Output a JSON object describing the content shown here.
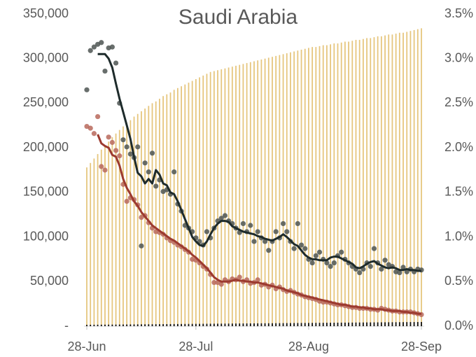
{
  "chart_data": {
    "type": "combo",
    "title": "Saudi Arabia",
    "categories": [
      "28-Jun",
      null,
      null,
      null,
      null,
      null,
      null,
      null,
      null,
      null,
      null,
      null,
      null,
      null,
      null,
      null,
      null,
      null,
      null,
      null,
      null,
      null,
      null,
      null,
      null,
      null,
      null,
      null,
      null,
      null,
      "28-Jul",
      null,
      null,
      null,
      null,
      null,
      null,
      null,
      null,
      null,
      null,
      null,
      null,
      null,
      null,
      null,
      null,
      null,
      null,
      null,
      null,
      null,
      null,
      null,
      null,
      null,
      null,
      null,
      null,
      null,
      null,
      "28-Aug",
      null,
      null,
      null,
      null,
      null,
      null,
      null,
      null,
      null,
      null,
      null,
      null,
      null,
      null,
      null,
      null,
      null,
      null,
      null,
      null,
      null,
      null,
      null,
      null,
      null,
      null,
      null,
      null,
      null,
      null,
      "28-Sep"
    ],
    "ylim": [
      0,
      350000
    ],
    "yticks": [
      {
        "value": 0,
        "label": "-"
      },
      {
        "value": 50000,
        "label": "50,000"
      },
      {
        "value": 100000,
        "label": "100,000"
      },
      {
        "value": 150000,
        "label": "150,000"
      },
      {
        "value": 200000,
        "label": "200,000"
      },
      {
        "value": 250000,
        "label": "250,000"
      },
      {
        "value": 300000,
        "label": "300,000"
      },
      {
        "value": 350000,
        "label": "350,000"
      }
    ],
    "y2lim": [
      0,
      3.5
    ],
    "y2ticks": [
      {
        "value": 0,
        "label": "0.0%"
      },
      {
        "value": 0.5,
        "label": "0.5%"
      },
      {
        "value": 1,
        "label": "1.0%"
      },
      {
        "value": 1.5,
        "label": "1.5%"
      },
      {
        "value": 2,
        "label": "2.0%"
      },
      {
        "value": 2.5,
        "label": "2.5%"
      },
      {
        "value": 3,
        "label": "3.0%"
      },
      {
        "value": 3.5,
        "label": "3.5%"
      }
    ],
    "series": [
      {
        "type": "bar",
        "color": "#e6c67e",
        "values": [
          178000,
          183000,
          188000,
          193000,
          198000,
          203000,
          207000,
          212000,
          216000,
          220000,
          224000,
          228000,
          231000,
          235000,
          238000,
          241000,
          244000,
          247000,
          250000,
          252000,
          255000,
          258000,
          260000,
          262000,
          265000,
          267000,
          269000,
          271000,
          273000,
          275000,
          277000,
          279000,
          281000,
          283000,
          285000,
          286000,
          287000,
          288000,
          289000,
          290000,
          291000,
          292000,
          293000,
          294000,
          295000,
          296000,
          297000,
          298000,
          299000,
          300000,
          301000,
          302000,
          303000,
          304000,
          305000,
          306000,
          307000,
          308000,
          309000,
          310000,
          311000,
          312000,
          313000,
          313000,
          314000,
          315000,
          315000,
          316000,
          317000,
          317000,
          318000,
          319000,
          319000,
          320000,
          321000,
          321000,
          322000,
          323000,
          323000,
          324000,
          325000,
          325000,
          326000,
          327000,
          327000,
          328000,
          329000,
          329000,
          330000,
          331000,
          332000,
          333000,
          334000
        ]
      },
      {
        "type": "bar",
        "color": "#111111",
        "values": [
          1600,
          1630,
          1670,
          1700,
          1740,
          1770,
          1800,
          1840,
          1870,
          1910,
          1940,
          1970,
          2010,
          2040,
          2080,
          2110,
          2140,
          2180,
          2210,
          2250,
          2280,
          2310,
          2350,
          2380,
          2420,
          2450,
          2480,
          2520,
          2550,
          2590,
          2620,
          2650,
          2690,
          2720,
          2760,
          2790,
          2820,
          2860,
          2890,
          2930,
          2960,
          2990,
          3030,
          3060,
          3100,
          3130,
          3160,
          3200,
          3230,
          3270,
          3300,
          3330,
          3370,
          3400,
          3440,
          3470,
          3500,
          3540,
          3570,
          3610,
          3640,
          3670,
          3710,
          3740,
          3780,
          3810,
          3840,
          3880,
          3910,
          3950,
          3980,
          4010,
          4050,
          4080,
          4120,
          4150,
          4180,
          4220,
          4250,
          4290,
          4320,
          4350,
          4390,
          4420,
          4460,
          4490,
          4520,
          4560,
          4590,
          4630,
          4660,
          4690,
          4730
        ]
      },
      {
        "type": "scatter",
        "color": "#4d5552",
        "values": [
          265000,
          309000,
          313000,
          316000,
          318000,
          286000,
          312000,
          313000,
          295000,
          250000,
          209000,
          201000,
          193000,
          189000,
          201000,
          90000,
          183000,
          173000,
          194000,
          157000,
          164000,
          151000,
          153000,
          148000,
          173000,
          137000,
          129000,
          113000,
          110000,
          106000,
          99000,
          95000,
          91000,
          106000,
          99000,
          110000,
          118000,
          121000,
          124000,
          118000,
          115000,
          110000,
          105000,
          115000,
          106000,
          113000,
          95000,
          106000,
          99000,
          95000,
          85000,
          95000,
          106000,
          99000,
          115000,
          106000,
          95000,
          87000,
          115000,
          91000,
          87000,
          75000,
          71000,
          79000,
          83000,
          75000,
          71000,
          67000,
          71000,
          79000,
          83000,
          75000,
          71000,
          67000,
          64000,
          60000,
          64000,
          71000,
          67000,
          87000,
          71000,
          64000,
          74000,
          69000,
          67000,
          61000,
          60000,
          66000,
          61000,
          64000,
          61000,
          64000,
          63000
        ]
      },
      {
        "type": "scatter",
        "color": "#b8695c",
        "values": [
          224000,
          222000,
          216000,
          235000,
          179000,
          175000,
          212000,
          206000,
          197000,
          191000,
          159000,
          140000,
          144000,
          142000,
          136000,
          122000,
          124000,
          116000,
          110000,
          106000,
          105000,
          103000,
          99000,
          96000,
          94000,
          91000,
          89000,
          86000,
          83000,
          75000,
          74000,
          71000,
          67000,
          64000,
          58000,
          49000,
          49000,
          47000,
          52000,
          50000,
          53000,
          52000,
          55000,
          50000,
          52000,
          48000,
          49000,
          52000,
          46000,
          47000,
          44000,
          46000,
          42000,
          44000,
          41000,
          39000,
          40000,
          38000,
          36000,
          35000,
          33000,
          32000,
          31000,
          30000,
          28000,
          27000,
          27000,
          26000,
          25000,
          24000,
          24000,
          23000,
          22000,
          21000,
          21000,
          20000,
          20000,
          20000,
          19000,
          19000,
          18000,
          20000,
          19000,
          18000,
          17000,
          17000,
          16000,
          16000,
          16000,
          16000,
          15000,
          14000,
          13000
        ]
      },
      {
        "type": "line",
        "color": "#1e2b2b",
        "values": [
          null,
          null,
          null,
          305000,
          305000,
          305000,
          300000,
          290000,
          272000,
          255000,
          240000,
          225000,
          210000,
          190000,
          172000,
          168000,
          160000,
          165000,
          160000,
          175000,
          170000,
          160000,
          158000,
          150000,
          148000,
          140000,
          130000,
          120000,
          110000,
          100000,
          95000,
          91000,
          90000,
          95000,
          103000,
          110000,
          115000,
          118000,
          118000,
          117000,
          112000,
          110000,
          108000,
          106000,
          105000,
          104000,
          103000,
          101000,
          100000,
          98000,
          97000,
          96000,
          98000,
          100000,
          103000,
          100000,
          96000,
          92000,
          90000,
          85000,
          80000,
          77000,
          75000,
          75000,
          74000,
          74000,
          74000,
          77000,
          78000,
          78000,
          76000,
          74000,
          72000,
          70000,
          66000,
          65000,
          67000,
          70000,
          72000,
          73000,
          70000,
          68000,
          66000,
          65000,
          66000,
          65000,
          63000,
          63000,
          64000,
          63000,
          63000,
          62000,
          62000
        ]
      },
      {
        "type": "line",
        "color": "#9c3a2f",
        "values": [
          null,
          null,
          null,
          215000,
          205000,
          202000,
          200000,
          192000,
          190000,
          180000,
          165000,
          155000,
          148000,
          140000,
          135000,
          128000,
          123000,
          118000,
          113000,
          110000,
          107000,
          104000,
          101000,
          98000,
          96000,
          93000,
          90000,
          87000,
          84000,
          80000,
          77000,
          73000,
          69000,
          65000,
          60000,
          55000,
          52000,
          50000,
          50000,
          50000,
          51000,
          52000,
          51000,
          51000,
          50000,
          50000,
          49000,
          49000,
          48000,
          47000,
          46000,
          45000,
          44000,
          43000,
          42000,
          40000,
          39000,
          38000,
          37000,
          35000,
          34000,
          33000,
          32000,
          31000,
          30000,
          29000,
          28000,
          27000,
          26000,
          25000,
          24000,
          24000,
          23000,
          22000,
          22000,
          21000,
          21000,
          20000,
          20000,
          19000,
          19000,
          19000,
          18000,
          18000,
          17000,
          17000,
          17000,
          16000,
          16000,
          15000,
          15000,
          14000,
          14000
        ]
      }
    ]
  }
}
